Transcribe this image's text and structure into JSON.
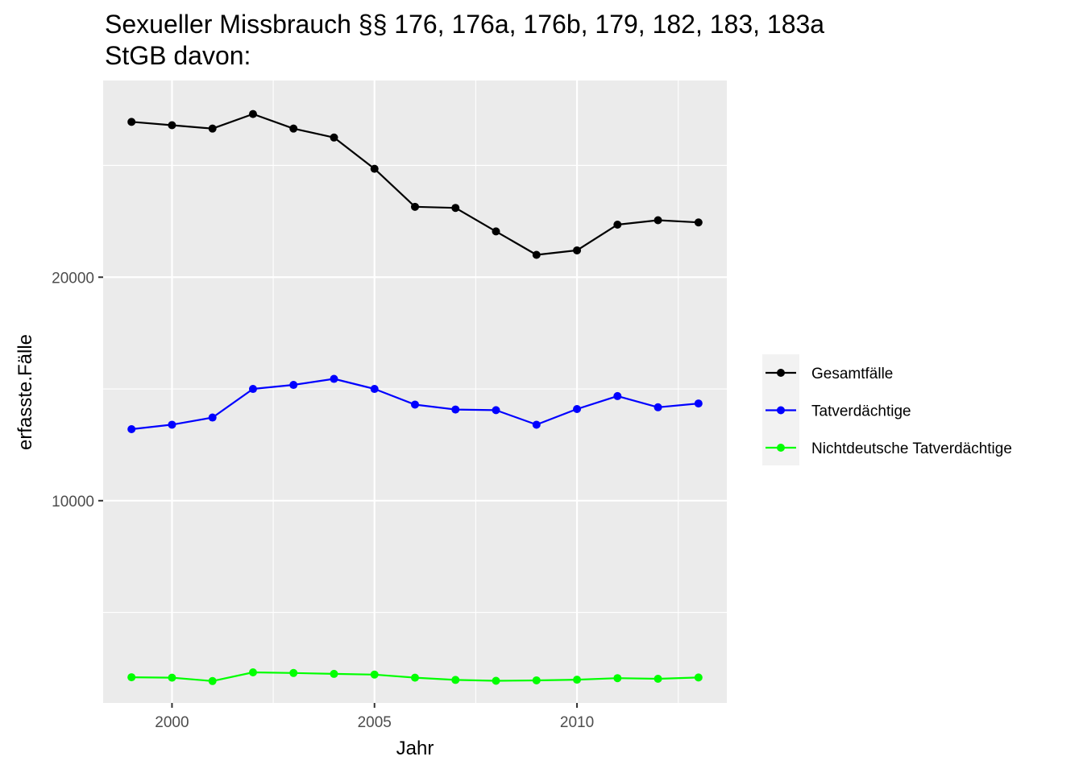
{
  "chart_data": {
    "type": "line",
    "title_lines": [
      "Sexueller Missbrauch §§ 176, 176a, 176b, 179, 182, 183, 183a",
      "StGB davon:"
    ],
    "xlabel": "Jahr",
    "ylabel": "erfasste.Fälle",
    "x": [
      1999,
      2000,
      2001,
      2002,
      2003,
      2004,
      2005,
      2006,
      2007,
      2008,
      2009,
      2010,
      2011,
      2012,
      2013
    ],
    "xlim": [
      1998.3,
      2013.7
    ],
    "ylim": [
      950,
      28800
    ],
    "x_ticks": [
      2000,
      2005,
      2010
    ],
    "x_tick_labels": [
      "2000",
      "2005",
      "2010"
    ],
    "x_minor": [
      2002.5,
      2007.5,
      2012.5
    ],
    "y_ticks": [
      10000,
      20000
    ],
    "y_tick_labels": [
      "10000",
      "20000"
    ],
    "y_minor": [
      5000,
      15000,
      25000
    ],
    "grid": true,
    "legend_position": "right",
    "series": [
      {
        "name": "Gesamtfälle",
        "color": "#000000",
        "values": [
          26950,
          26800,
          26650,
          27300,
          26650,
          26250,
          24850,
          23150,
          23100,
          22050,
          21000,
          21200,
          22350,
          22550,
          22450
        ]
      },
      {
        "name": "Tatverdächtige",
        "color": "#0000ff",
        "values": [
          13200,
          13400,
          13720,
          15000,
          15180,
          15450,
          15000,
          14300,
          14080,
          14050,
          13400,
          14100,
          14680,
          14180,
          14350
        ]
      },
      {
        "name": "Nichtdeutsche Tatverdächtige",
        "color": "#00ff00",
        "values": [
          2100,
          2080,
          1930,
          2320,
          2290,
          2250,
          2220,
          2080,
          1980,
          1940,
          1960,
          1990,
          2060,
          2030,
          2090
        ]
      }
    ]
  }
}
